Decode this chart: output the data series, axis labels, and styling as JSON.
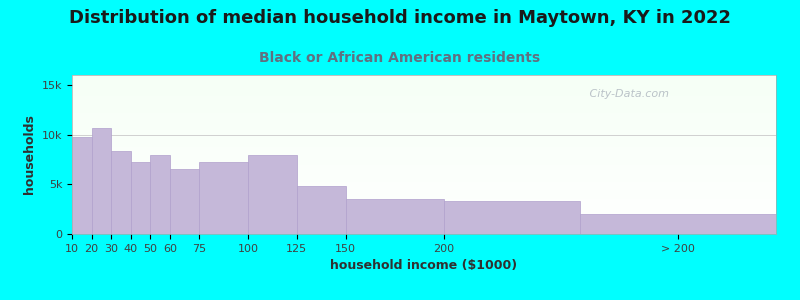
{
  "title": "Distribution of median household income in Maytown, KY in 2022",
  "subtitle": "Black or African American residents",
  "xlabel": "household income ($1000)",
  "ylabel": "households",
  "background_outer": "#00FFFF",
  "bar_color": "#c5b8d9",
  "bar_edge_color": "#b0a0cc",
  "categories": [
    "10",
    "20",
    "30",
    "40",
    "50",
    "60",
    "75",
    "100",
    "125",
    "150",
    "200",
    "> 200"
  ],
  "values": [
    9800,
    10700,
    8400,
    7200,
    7900,
    6500,
    7200,
    7900,
    4800,
    3500,
    3300,
    2000
  ],
  "bar_lefts": [
    10,
    20,
    30,
    40,
    50,
    60,
    75,
    100,
    125,
    150,
    200,
    270
  ],
  "bar_rights": [
    20,
    30,
    40,
    50,
    60,
    75,
    100,
    125,
    150,
    200,
    270,
    370
  ],
  "xtick_positions": [
    10,
    20,
    30,
    40,
    50,
    60,
    75,
    100,
    125,
    150,
    200,
    320
  ],
  "ylim": [
    0,
    16000
  ],
  "yticks": [
    0,
    5000,
    10000,
    15000
  ],
  "ytick_labels": [
    "0",
    "5k",
    "10k",
    "15k"
  ],
  "title_fontsize": 13,
  "subtitle_fontsize": 10,
  "axis_label_fontsize": 9,
  "tick_fontsize": 8,
  "watermark": " City-Data.com"
}
